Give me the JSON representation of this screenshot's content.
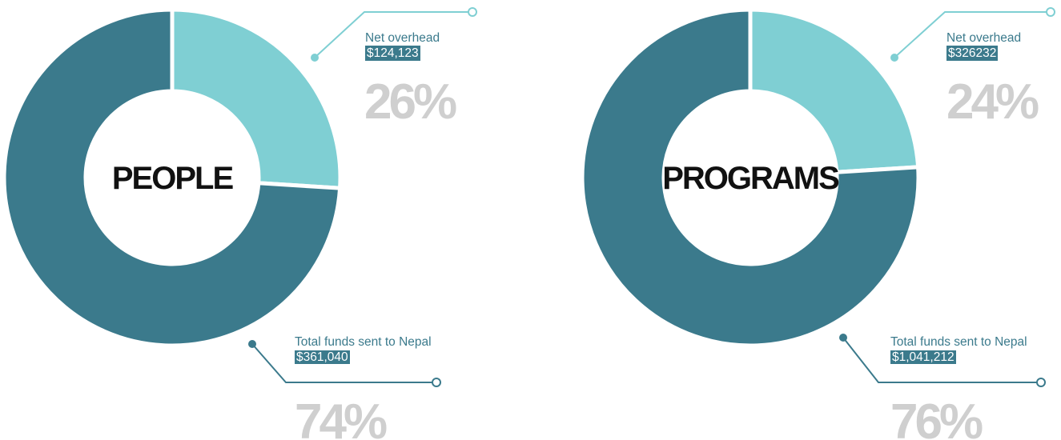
{
  "chart_data": [
    {
      "type": "pie",
      "donut": true,
      "center_label": "PEOPLE",
      "categories": [
        "Net overhead",
        "Total funds sent to Nepal"
      ],
      "values": [
        26,
        74
      ],
      "value_labels": [
        "26%",
        "74%"
      ],
      "amount_labels": [
        "$124,123",
        "$361,040"
      ],
      "colors": [
        "#7fcfd3",
        "#3b7a8c"
      ]
    },
    {
      "type": "pie",
      "donut": true,
      "center_label": "PROGRAMS",
      "categories": [
        "Net overhead",
        "Total funds sent to Nepal"
      ],
      "values": [
        24,
        76
      ],
      "value_labels": [
        "24%",
        "76%"
      ],
      "amount_labels": [
        "$326232",
        "$1,041,212"
      ],
      "colors": [
        "#7fcfd3",
        "#3b7a8c"
      ]
    }
  ]
}
